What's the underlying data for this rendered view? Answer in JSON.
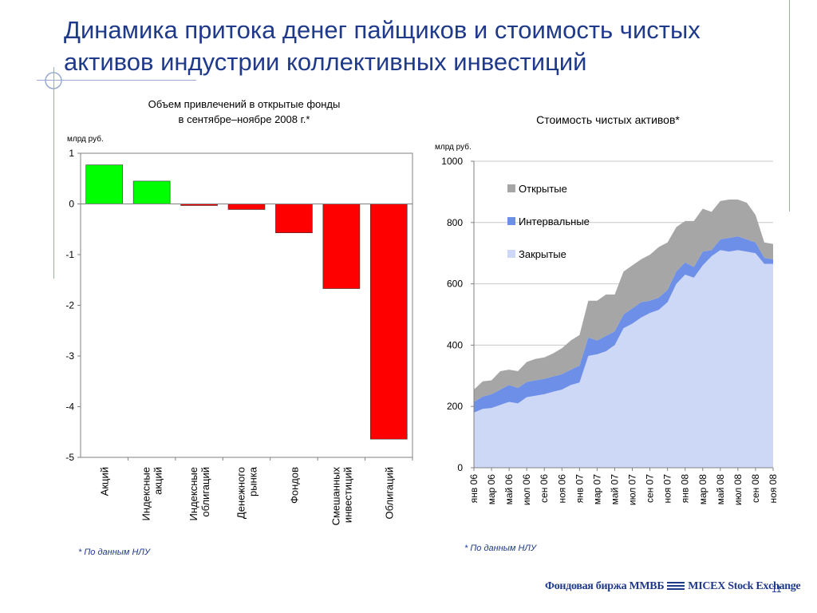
{
  "title": {
    "line1": "Динамика притока денег пайщиков и стоимость чистых",
    "line2": "активов индустрии коллективных инвестиций"
  },
  "colors": {
    "title": "#1f3a8a",
    "positive": "#00ff00",
    "negative": "#ff0000",
    "open": "#a6a6a6",
    "interval": "#6d8fe8",
    "closed": "#cdd8f6"
  },
  "chart_data": [
    {
      "type": "bar",
      "title": "Объем привлечений в открытые фонды в сентябре–ноябре 2008 г.*",
      "title_lines": [
        "Объем привлечений в открытые фонды",
        "в сентябре–ноябре 2008 г.*"
      ],
      "unit_label": "млрд руб.",
      "categories": [
        "Акций",
        "Индексные акций",
        "Индексные облигаций",
        "Денежного рынка",
        "Фондов",
        "Смешанных инвестиций",
        "Облигаций"
      ],
      "category_lines": [
        [
          "Акций"
        ],
        [
          "Индексные",
          "акций"
        ],
        [
          "Индексные",
          "облигаций"
        ],
        [
          "Денежного",
          "рынка"
        ],
        [
          "Фондов"
        ],
        [
          "Смешанных",
          "инвестиций"
        ],
        [
          "Облигаций"
        ]
      ],
      "values": [
        0.77,
        0.45,
        -0.03,
        -0.11,
        -0.57,
        -1.67,
        -4.64
      ],
      "ylim": [
        -5,
        1
      ],
      "yticks": [
        "1",
        "0",
        "-1",
        "-2",
        "-3",
        "-4",
        "-5"
      ],
      "grid": false
    },
    {
      "type": "area",
      "stacked": true,
      "title": "Стоимость чистых активов*",
      "unit_label": "млрд руб.",
      "ylim": [
        0,
        1000
      ],
      "yticks": [
        "1000",
        "800",
        "600",
        "400",
        "200",
        "0"
      ],
      "grid": true,
      "legend_position": "top-left",
      "x_labels": [
        "янв 06",
        "мар 06",
        "май 06",
        "июл 06",
        "сен 06",
        "ноя 06",
        "янв 07",
        "мар 07",
        "май 07",
        "июл 07",
        "сен 07",
        "ноя 07",
        "янв 08",
        "мар 08",
        "май 08",
        "июл 08",
        "сен 08",
        "ноя 08"
      ],
      "x": [
        "янв 06",
        "фев 06",
        "мар 06",
        "апр 06",
        "май 06",
        "июн 06",
        "июл 06",
        "авг 06",
        "сен 06",
        "окт 06",
        "ноя 06",
        "дек 06",
        "янв 07",
        "фев 07",
        "мар 07",
        "апр 07",
        "май 07",
        "июн 07",
        "июл 07",
        "авг 07",
        "сен 07",
        "окт 07",
        "ноя 07",
        "дек 07",
        "янв 08",
        "фев 08",
        "мар 08",
        "апр 08",
        "май 08",
        "июн 08",
        "июл 08",
        "авг 08",
        "сен 08",
        "окт 08",
        "ноя 08"
      ],
      "series": [
        {
          "name": "Закрытые",
          "values": [
            180,
            192,
            195,
            205,
            215,
            210,
            230,
            235,
            240,
            248,
            255,
            270,
            278,
            365,
            370,
            380,
            400,
            455,
            470,
            490,
            505,
            515,
            540,
            600,
            630,
            620,
            660,
            690,
            710,
            705,
            710,
            705,
            700,
            665,
            665
          ]
        },
        {
          "name": "Интервальные",
          "values": [
            35,
            40,
            45,
            50,
            55,
            50,
            50,
            50,
            50,
            50,
            50,
            50,
            55,
            60,
            45,
            50,
            45,
            45,
            50,
            50,
            40,
            40,
            40,
            40,
            40,
            35,
            45,
            20,
            35,
            45,
            45,
            40,
            35,
            20,
            15
          ]
        },
        {
          "name": "Открытые",
          "values": [
            40,
            50,
            45,
            60,
            50,
            55,
            65,
            70,
            70,
            75,
            85,
            95,
            100,
            120,
            130,
            135,
            120,
            140,
            140,
            140,
            150,
            165,
            155,
            145,
            135,
            150,
            140,
            125,
            125,
            125,
            120,
            120,
            90,
            50,
            50
          ]
        }
      ]
    }
  ],
  "footnote_left": "* По данным НЛУ",
  "footnote_right": "* По данным НЛУ",
  "brand": {
    "ru": "Фондовая биржа ММВБ",
    "en": "MICEX Stock Exchange"
  },
  "page_number": "11"
}
